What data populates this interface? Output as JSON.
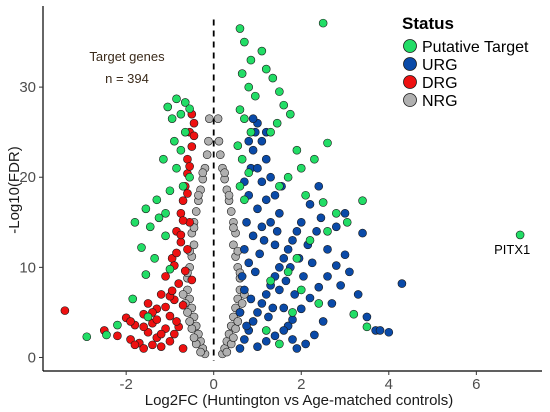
{
  "chart_data": {
    "type": "scatter",
    "xlabel": "Log2FC (Huntington vs Age-matched controls)",
    "ylabel": "-Log10(FDR)",
    "xlim": [
      -3.9,
      7.5
    ],
    "ylim": [
      -1.5,
      39
    ],
    "x_ticks": [
      -2,
      0,
      2,
      4,
      6
    ],
    "y_ticks": [
      0,
      10,
      20,
      30
    ],
    "x_tick_labels": [
      "-2",
      "0",
      "2",
      "4",
      "6"
    ],
    "y_tick_labels": [
      "0",
      "10",
      "20",
      "30"
    ],
    "grid": false,
    "vline": 0,
    "legend": {
      "title": "Status",
      "position": "top-right",
      "entries": [
        {
          "label": "Putative Target",
          "color": "#22dd66"
        },
        {
          "label": "URG",
          "color": "#0a4aa8"
        },
        {
          "label": "DRG",
          "color": "#ee1111"
        },
        {
          "label": "NRG",
          "color": "#b0b0b0"
        }
      ]
    },
    "annotation": {
      "line1": "Target genes",
      "line2": "n = 394"
    },
    "labeled_points": [
      {
        "label": "PITX1",
        "x": 7.0,
        "y": 13.6
      }
    ],
    "series": [
      {
        "name": "NRG",
        "color": "#b0b0b0",
        "points": [
          [
            -0.2,
            0.4
          ],
          [
            -0.25,
            1.0
          ],
          [
            -0.3,
            1.8
          ],
          [
            -0.35,
            2.6
          ],
          [
            -0.4,
            3.5
          ],
          [
            -0.45,
            4.5
          ],
          [
            -0.5,
            5.5
          ],
          [
            -0.55,
            6.5
          ],
          [
            -0.6,
            7.5
          ],
          [
            -0.6,
            8.8
          ],
          [
            -0.55,
            10
          ],
          [
            -0.5,
            11.2
          ],
          [
            -0.45,
            12.5
          ],
          [
            -0.5,
            13.8
          ],
          [
            -0.45,
            15
          ],
          [
            -0.4,
            16.2
          ],
          [
            -0.35,
            17.4
          ],
          [
            -0.3,
            18.6
          ],
          [
            -0.25,
            19.8
          ],
          [
            -0.2,
            21
          ],
          [
            -0.15,
            22.5
          ],
          [
            -0.12,
            24
          ],
          [
            -0.1,
            26.5
          ],
          [
            -0.3,
            0.6
          ],
          [
            -0.4,
            1.5
          ],
          [
            -0.45,
            2.2
          ],
          [
            -0.5,
            3.2
          ],
          [
            -0.55,
            4.0
          ],
          [
            -0.6,
            5.0
          ],
          [
            -0.65,
            6.0
          ],
          [
            -0.7,
            7.0
          ],
          [
            -0.6,
            9.4
          ],
          [
            -0.55,
            11.8
          ],
          [
            -0.45,
            14.4
          ],
          [
            -0.35,
            18.0
          ],
          [
            -0.25,
            20.5
          ],
          [
            0.2,
            0.4
          ],
          [
            0.25,
            1.0
          ],
          [
            0.3,
            1.8
          ],
          [
            0.35,
            2.6
          ],
          [
            0.4,
            3.5
          ],
          [
            0.45,
            4.5
          ],
          [
            0.5,
            5.5
          ],
          [
            0.55,
            6.5
          ],
          [
            0.6,
            7.5
          ],
          [
            0.6,
            8.8
          ],
          [
            0.55,
            10
          ],
          [
            0.5,
            11.2
          ],
          [
            0.45,
            12.5
          ],
          [
            0.5,
            13.8
          ],
          [
            0.45,
            15
          ],
          [
            0.4,
            16.2
          ],
          [
            0.35,
            17.4
          ],
          [
            0.3,
            18.6
          ],
          [
            0.25,
            19.8
          ],
          [
            0.2,
            21
          ],
          [
            0.15,
            22.5
          ],
          [
            0.12,
            24
          ],
          [
            0.1,
            26.5
          ],
          [
            0.3,
            0.6
          ],
          [
            0.4,
            1.5
          ],
          [
            0.45,
            2.2
          ],
          [
            0.5,
            3.2
          ],
          [
            0.55,
            4.0
          ],
          [
            0.6,
            5.0
          ],
          [
            0.65,
            6.0
          ],
          [
            0.7,
            7.0
          ],
          [
            0.6,
            9.4
          ],
          [
            0.55,
            11.8
          ],
          [
            0.45,
            14.4
          ],
          [
            0.35,
            18.0
          ],
          [
            0.25,
            20.5
          ]
        ]
      },
      {
        "name": "DRG",
        "color": "#ee1111",
        "points": [
          [
            -3.4,
            5.2
          ],
          [
            -2.5,
            3.0
          ],
          [
            -2.2,
            2.4
          ],
          [
            -2.0,
            4.4
          ],
          [
            -1.9,
            2.0
          ],
          [
            -1.8,
            3.6
          ],
          [
            -1.7,
            1.6
          ],
          [
            -1.6,
            4.8
          ],
          [
            -1.5,
            2.8
          ],
          [
            -1.5,
            6.0
          ],
          [
            -1.4,
            1.4
          ],
          [
            -1.4,
            3.8
          ],
          [
            -1.3,
            5.4
          ],
          [
            -1.3,
            2.2
          ],
          [
            -1.2,
            7.0
          ],
          [
            -1.2,
            1.2
          ],
          [
            -1.1,
            3.2
          ],
          [
            -1.1,
            9.0
          ],
          [
            -1.0,
            4.6
          ],
          [
            -1.0,
            1.8
          ],
          [
            -0.95,
            11.0
          ],
          [
            -0.9,
            6.4
          ],
          [
            -0.9,
            2.6
          ],
          [
            -0.85,
            14.0
          ],
          [
            -0.8,
            8.2
          ],
          [
            -0.8,
            3.4
          ],
          [
            -0.75,
            16.0
          ],
          [
            -0.7,
            5.8
          ],
          [
            -0.7,
            1.0
          ],
          [
            -0.65,
            19.0
          ],
          [
            -0.6,
            12.0
          ],
          [
            -0.6,
            22.0
          ],
          [
            -0.55,
            25.0
          ],
          [
            -0.5,
            27.0
          ],
          [
            -1.6,
            1.0
          ],
          [
            -1.4,
            5.0
          ],
          [
            -1.2,
            2.6
          ],
          [
            -1.0,
            6.8
          ],
          [
            -0.9,
            10.2
          ],
          [
            -0.85,
            4.0
          ],
          [
            -0.75,
            12.8
          ],
          [
            -0.7,
            17.4
          ],
          [
            -0.65,
            9.6
          ],
          [
            -0.6,
            20.4
          ],
          [
            -0.55,
            15.0
          ],
          [
            -0.5,
            23.4
          ],
          [
            -0.45,
            24.6
          ],
          [
            -1.8,
            1.4
          ],
          [
            -1.9,
            4.0
          ],
          [
            -1.6,
            3.4
          ],
          [
            -1.3,
            4.2
          ],
          [
            -1.1,
            5.6
          ],
          [
            -0.95,
            7.4
          ],
          [
            -0.85,
            11.6
          ],
          [
            -0.75,
            13.6
          ],
          [
            -0.7,
            15.2
          ],
          [
            -0.6,
            18.2
          ],
          [
            -0.55,
            21.2
          ],
          [
            -0.5,
            8.6
          ],
          [
            -0.45,
            26.0
          ]
        ]
      },
      {
        "name": "URG",
        "color": "#0a4aa8",
        "points": [
          [
            0.6,
            1.0
          ],
          [
            0.7,
            2.0
          ],
          [
            0.8,
            3.0
          ],
          [
            0.9,
            4.0
          ],
          [
            1.0,
            5.0
          ],
          [
            1.1,
            6.0
          ],
          [
            1.2,
            7.0
          ],
          [
            1.3,
            8.0
          ],
          [
            1.4,
            9.0
          ],
          [
            1.5,
            10.0
          ],
          [
            1.6,
            11.0
          ],
          [
            1.7,
            12.0
          ],
          [
            1.8,
            13.0
          ],
          [
            1.9,
            14.0
          ],
          [
            2.0,
            15.0
          ],
          [
            0.65,
            9.0
          ],
          [
            0.7,
            12.0
          ],
          [
            0.75,
            15.0
          ],
          [
            0.8,
            18.0
          ],
          [
            0.85,
            21.0
          ],
          [
            0.9,
            23.0
          ],
          [
            0.95,
            25.0
          ],
          [
            1.0,
            26.0
          ],
          [
            1.1,
            24.0
          ],
          [
            1.2,
            22.0
          ],
          [
            1.3,
            20.0
          ],
          [
            1.4,
            18.0
          ],
          [
            1.5,
            16.0
          ],
          [
            0.6,
            5.0
          ],
          [
            0.7,
            7.5
          ],
          [
            0.8,
            10.5
          ],
          [
            0.9,
            13.5
          ],
          [
            1.0,
            16.5
          ],
          [
            1.1,
            19.5
          ],
          [
            1.2,
            17.5
          ],
          [
            1.3,
            15.0
          ],
          [
            1.4,
            12.5
          ],
          [
            1.5,
            7.5
          ],
          [
            1.6,
            5.5
          ],
          [
            1.7,
            3.5
          ],
          [
            1.8,
            2.0
          ],
          [
            1.9,
            1.0
          ],
          [
            2.1,
            1.5
          ],
          [
            2.3,
            2.5
          ],
          [
            2.5,
            4.0
          ],
          [
            2.7,
            6.0
          ],
          [
            2.9,
            8.0
          ],
          [
            3.1,
            9.5
          ],
          [
            3.3,
            7.0
          ],
          [
            3.5,
            4.5
          ],
          [
            3.7,
            3.0
          ],
          [
            1.0,
            1.2
          ],
          [
            1.2,
            1.8
          ],
          [
            1.4,
            2.4
          ],
          [
            1.6,
            3.0
          ],
          [
            1.8,
            4.2
          ],
          [
            2.0,
            5.4
          ],
          [
            2.2,
            6.6
          ],
          [
            2.4,
            7.8
          ],
          [
            2.6,
            9.0
          ],
          [
            2.8,
            10.2
          ],
          [
            3.0,
            11.4
          ],
          [
            3.4,
            13.8
          ],
          [
            3.8,
            3.0
          ],
          [
            4.0,
            2.8
          ],
          [
            4.3,
            8.2
          ],
          [
            2.2,
            17.0
          ],
          [
            2.4,
            19.0
          ],
          [
            2.6,
            12.0
          ],
          [
            2.8,
            14.5
          ],
          [
            3.0,
            16.0
          ],
          [
            0.75,
            3.5
          ],
          [
            0.85,
            6.5
          ],
          [
            0.95,
            9.5
          ],
          [
            1.05,
            11.5
          ],
          [
            1.15,
            13.0
          ],
          [
            1.25,
            4.5
          ],
          [
            1.35,
            5.5
          ],
          [
            1.45,
            14.0
          ],
          [
            1.55,
            19.0
          ],
          [
            1.65,
            8.5
          ],
          [
            1.75,
            10.0
          ],
          [
            1.85,
            7.0
          ],
          [
            1.95,
            11.0
          ],
          [
            2.05,
            9.0
          ],
          [
            2.15,
            12.5
          ],
          [
            2.25,
            10.5
          ],
          [
            2.35,
            14.0
          ],
          [
            2.45,
            15.5
          ],
          [
            0.7,
            19.5
          ],
          [
            0.8,
            24.0
          ],
          [
            0.9,
            26.5
          ],
          [
            1.0,
            21.0
          ],
          [
            1.1,
            14.5
          ],
          [
            1.2,
            25.0
          ]
        ]
      },
      {
        "name": "Putative Target",
        "color": "#22dd66",
        "points": [
          [
            -0.85,
            28.7
          ],
          [
            -0.65,
            28.3
          ],
          [
            -0.75,
            27.0
          ],
          [
            -1.05,
            27.8
          ],
          [
            -0.95,
            26.5
          ],
          [
            -0.55,
            27.6
          ],
          [
            -0.65,
            25.0
          ],
          [
            -0.9,
            24.0
          ],
          [
            -0.75,
            23.0
          ],
          [
            -1.15,
            22.0
          ],
          [
            -0.85,
            21.0
          ],
          [
            -1.0,
            18.5
          ],
          [
            -1.3,
            17.5
          ],
          [
            -1.55,
            16.5
          ],
          [
            -1.25,
            15.5
          ],
          [
            -1.8,
            15.0
          ],
          [
            -1.45,
            14.5
          ],
          [
            -1.1,
            13.5
          ],
          [
            -1.65,
            12.2
          ],
          [
            -1.35,
            11.0
          ],
          [
            -1.0,
            9.8
          ],
          [
            -1.55,
            9.2
          ],
          [
            -1.85,
            6.5
          ],
          [
            -1.5,
            4.5
          ],
          [
            -2.2,
            3.6
          ],
          [
            -2.9,
            2.3
          ],
          [
            -2.45,
            2.5
          ],
          [
            -0.55,
            20.0
          ],
          [
            -0.7,
            19.0
          ],
          [
            -1.1,
            16.0
          ],
          [
            0.6,
            36.5
          ],
          [
            0.7,
            35.0
          ],
          [
            0.85,
            33.0
          ],
          [
            0.65,
            31.5
          ],
          [
            0.8,
            30.0
          ],
          [
            0.95,
            29.0
          ],
          [
            0.6,
            27.5
          ],
          [
            0.7,
            26.5
          ],
          [
            0.85,
            25.0
          ],
          [
            0.55,
            23.5
          ],
          [
            0.65,
            22.0
          ],
          [
            0.8,
            20.5
          ],
          [
            0.6,
            19.0
          ],
          [
            0.7,
            17.5
          ],
          [
            1.1,
            34.0
          ],
          [
            1.2,
            32.0
          ],
          [
            1.35,
            31.0
          ],
          [
            1.5,
            29.5
          ],
          [
            1.6,
            28.0
          ],
          [
            1.75,
            27.0
          ],
          [
            1.45,
            26.0
          ],
          [
            1.3,
            25.0
          ],
          [
            2.5,
            37.1
          ],
          [
            1.9,
            23.0
          ],
          [
            2.3,
            22.0
          ],
          [
            2.0,
            21.0
          ],
          [
            1.7,
            20.0
          ],
          [
            1.5,
            19.0
          ],
          [
            2.1,
            18.0
          ],
          [
            2.5,
            17.2
          ],
          [
            2.8,
            16.0
          ],
          [
            3.05,
            15.0
          ],
          [
            2.6,
            14.0
          ],
          [
            2.2,
            13.0
          ],
          [
            1.9,
            11.0
          ],
          [
            1.7,
            9.5
          ],
          [
            1.3,
            8.5
          ],
          [
            2.0,
            7.5
          ],
          [
            2.4,
            6.0
          ],
          [
            1.8,
            5.0
          ],
          [
            3.2,
            4.8
          ],
          [
            3.5,
            3.4
          ],
          [
            1.2,
            3.0
          ],
          [
            1.5,
            1.5
          ],
          [
            2.6,
            23.8
          ],
          [
            3.4,
            17.4
          ],
          [
            7.0,
            13.6
          ]
        ]
      }
    ]
  }
}
